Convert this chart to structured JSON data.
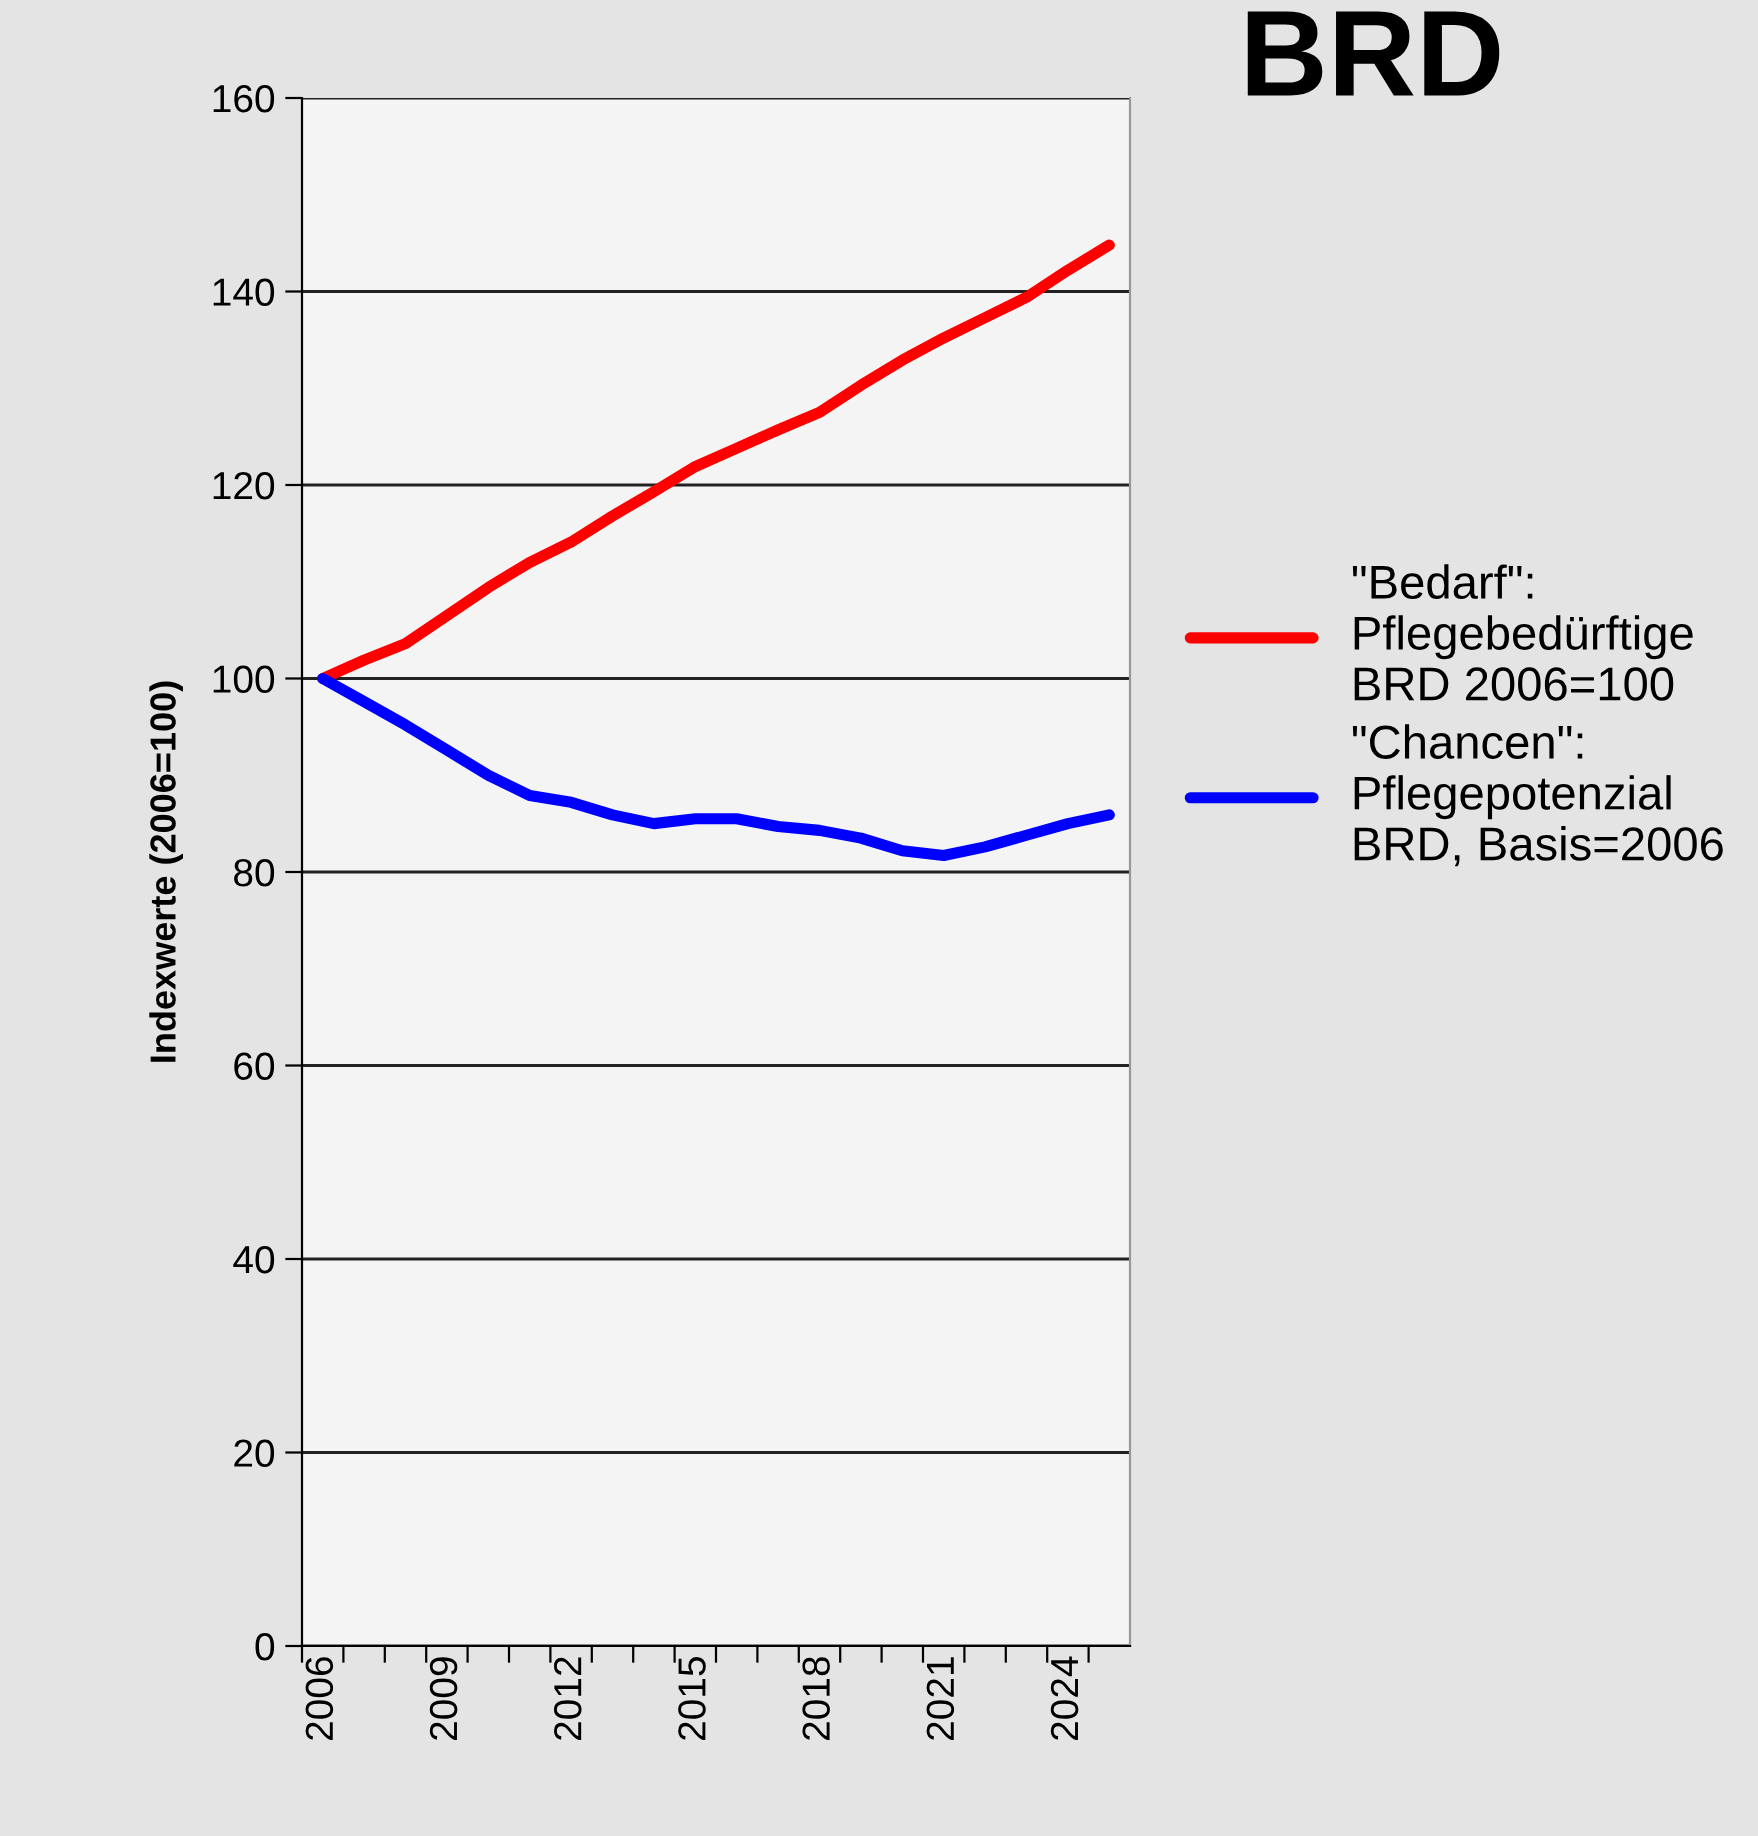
{
  "chart_data": {
    "type": "line",
    "title": "BRD",
    "ylabel": "Indexwerte (2006=100)",
    "categories": [
      "2006",
      null,
      null,
      "2009",
      null,
      null,
      "2012",
      null,
      null,
      "2015",
      null,
      null,
      "2018",
      null,
      null,
      "2021",
      null,
      null,
      "2024",
      null
    ],
    "series": [
      {
        "name": "\"Bedarf\":\nPflegebedürftige\nBRD 2006=100",
        "color": "#ff0000",
        "values": [
          100,
          101.9,
          103.6,
          106.5,
          109.4,
          112,
          114.1,
          116.8,
          119.3,
          121.9,
          123.8,
          125.7,
          127.5,
          130.3,
          132.9,
          135.2,
          137.3,
          139.4,
          142.2,
          144.8
        ]
      },
      {
        "name": "\"Chancen\":\nPflegepotenzial\nBRD, Basis=2006",
        "color": "#0000ff",
        "values": [
          100,
          97.6,
          95.2,
          92.6,
          90,
          87.9,
          87.2,
          85.9,
          85,
          85.5,
          85.5,
          84.7,
          84.3,
          83.5,
          82.2,
          81.7,
          82.6,
          83.8,
          85,
          85.9
        ]
      }
    ],
    "ylim": [
      0,
      160
    ],
    "yticks": [
      0,
      20,
      40,
      60,
      80,
      100,
      120,
      140,
      160
    ],
    "grid": "y",
    "legend": "right",
    "marker": "none",
    "line_style": "solid"
  }
}
